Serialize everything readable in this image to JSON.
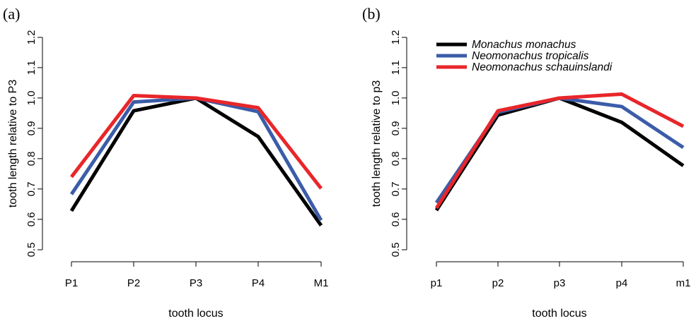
{
  "chart_data": [
    {
      "type": "line",
      "panel_label": "(a)",
      "categories": [
        "P1",
        "P2",
        "P3",
        "P4",
        "M1"
      ],
      "xlabel": "tooth locus",
      "ylabel": "tooth length relative to P3",
      "ylim": [
        0.5,
        1.2
      ],
      "yticks": [
        "0.5",
        "0.6",
        "0.7",
        "0.8",
        "0.9",
        "1.0",
        "1.1",
        "1.2"
      ],
      "grid": false,
      "series": [
        {
          "name": "Monachus monachus",
          "color": "#000000",
          "values": [
            0.628,
            0.958,
            1.0,
            0.873,
            0.58
          ]
        },
        {
          "name": "Neomonachus tropicalis",
          "color": "#3b5ca8",
          "values": [
            0.683,
            0.987,
            1.0,
            0.955,
            0.597
          ]
        },
        {
          "name": "Neomonachus schauinslandi",
          "color": "#e8262a",
          "values": [
            0.74,
            1.008,
            1.0,
            0.968,
            0.702
          ]
        }
      ]
    },
    {
      "type": "line",
      "panel_label": "(b)",
      "categories": [
        "p1",
        "p2",
        "p3",
        "p4",
        "m1"
      ],
      "xlabel": "tooth locus",
      "ylabel": "tooth length relative to p3",
      "ylim": [
        0.5,
        1.2
      ],
      "yticks": [
        "0.5",
        "0.6",
        "0.7",
        "0.8",
        "0.9",
        "1.0",
        "1.1",
        "1.2"
      ],
      "grid": false,
      "legend": "top-left",
      "series": [
        {
          "name": "Monachus monachus",
          "color": "#000000",
          "values": [
            0.63,
            0.944,
            1.0,
            0.92,
            0.777
          ]
        },
        {
          "name": "Neomonachus tropicalis",
          "color": "#3b5ca8",
          "values": [
            0.655,
            0.953,
            1.0,
            0.972,
            0.837
          ]
        },
        {
          "name": "Neomonachus schauinslandi",
          "color": "#e8262a",
          "values": [
            0.637,
            0.958,
            1.0,
            1.013,
            0.907
          ]
        }
      ]
    }
  ]
}
